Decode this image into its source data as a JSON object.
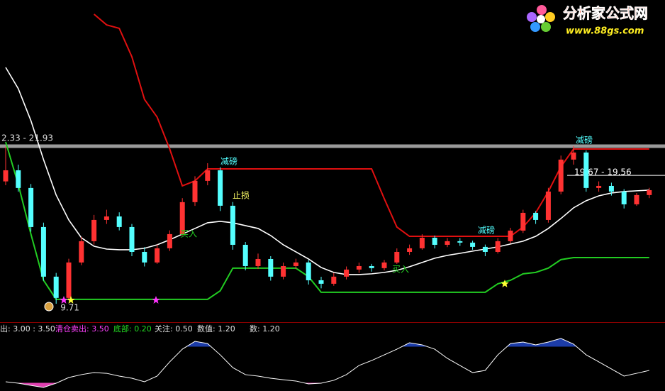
{
  "chart_data": {
    "type": "candlestick",
    "ylim": [
      8.5,
      33.27
    ],
    "up_color": "#ff3232",
    "down_color": "#54ffff",
    "candles": [
      [
        19.2,
        21.9,
        18.9,
        20.06
      ],
      [
        20.06,
        20.5,
        18.4,
        18.69
      ],
      [
        18.69,
        19.0,
        15.3,
        15.66
      ],
      [
        15.66,
        16.0,
        11.5,
        11.81
      ],
      [
        11.81,
        12.1,
        9.71,
        10.16
      ],
      [
        10.16,
        13.2,
        10.0,
        12.91
      ],
      [
        12.91,
        14.9,
        12.7,
        14.56
      ],
      [
        14.56,
        16.6,
        14.3,
        16.21
      ],
      [
        16.21,
        17.0,
        15.9,
        16.48
      ],
      [
        16.48,
        16.8,
        15.4,
        15.66
      ],
      [
        15.66,
        15.9,
        13.4,
        13.73
      ],
      [
        13.73,
        14.1,
        12.6,
        12.91
      ],
      [
        12.91,
        14.3,
        12.8,
        14.01
      ],
      [
        14.01,
        15.4,
        13.8,
        15.11
      ],
      [
        15.11,
        17.9,
        15.0,
        17.59
      ],
      [
        17.59,
        19.6,
        17.3,
        19.24
      ],
      [
        19.24,
        20.61,
        18.9,
        20.06
      ],
      [
        20.06,
        20.3,
        16.9,
        17.31
      ],
      [
        17.31,
        17.6,
        13.9,
        14.28
      ],
      [
        14.28,
        14.5,
        12.3,
        12.63
      ],
      [
        12.63,
        13.6,
        12.4,
        13.18
      ],
      [
        13.18,
        13.4,
        11.5,
        11.81
      ],
      [
        11.81,
        12.9,
        11.6,
        12.63
      ],
      [
        12.63,
        13.2,
        12.4,
        12.91
      ],
      [
        12.91,
        13.1,
        11.2,
        11.53
      ],
      [
        11.53,
        11.8,
        10.9,
        11.26
      ],
      [
        11.26,
        12.1,
        11.1,
        11.81
      ],
      [
        11.81,
        12.6,
        11.6,
        12.36
      ],
      [
        12.36,
        12.9,
        12.1,
        12.63
      ],
      [
        12.63,
        12.8,
        12.2,
        12.47
      ],
      [
        12.47,
        13.1,
        12.3,
        12.91
      ],
      [
        12.91,
        14.0,
        12.8,
        13.73
      ],
      [
        13.73,
        14.3,
        13.5,
        14.01
      ],
      [
        14.01,
        15.1,
        13.9,
        14.83
      ],
      [
        14.83,
        15.0,
        14.0,
        14.28
      ],
      [
        14.28,
        14.8,
        14.1,
        14.56
      ],
      [
        14.56,
        14.8,
        14.2,
        14.45
      ],
      [
        14.45,
        14.6,
        13.9,
        14.12
      ],
      [
        14.12,
        14.3,
        13.4,
        13.73
      ],
      [
        13.73,
        14.8,
        13.6,
        14.56
      ],
      [
        14.56,
        15.6,
        14.4,
        15.38
      ],
      [
        15.38,
        17.0,
        15.2,
        16.76
      ],
      [
        16.76,
        16.9,
        15.9,
        16.21
      ],
      [
        16.21,
        18.7,
        16.0,
        18.41
      ],
      [
        18.41,
        21.2,
        18.2,
        20.89
      ],
      [
        20.89,
        21.93,
        20.5,
        21.44
      ],
      [
        21.44,
        21.6,
        18.4,
        18.69
      ],
      [
        18.69,
        19.2,
        18.4,
        18.85
      ],
      [
        18.85,
        19.1,
        18.1,
        18.41
      ],
      [
        18.41,
        18.6,
        17.1,
        17.42
      ],
      [
        17.42,
        18.3,
        17.3,
        18.14
      ],
      [
        18.14,
        18.7,
        17.9,
        18.52
      ]
    ],
    "lines": [
      {
        "color": "#ffffff",
        "values": [
          28.04,
          26.39,
          23.91,
          20.89,
          18.14,
          16.21,
          14.83,
          14.17,
          13.95,
          13.9,
          13.9,
          14.01,
          14.28,
          14.67,
          15.11,
          15.55,
          15.99,
          16.1,
          15.99,
          15.77,
          15.55,
          15.0,
          14.28,
          13.73,
          13.18,
          12.52,
          12.14,
          11.97,
          11.97,
          12.03,
          12.14,
          12.3,
          12.58,
          12.91,
          13.24,
          13.46,
          13.62,
          13.79,
          13.95,
          14.12,
          14.34,
          14.56,
          14.94,
          15.55,
          16.32,
          17.15,
          17.7,
          18.08,
          18.3,
          18.41,
          18.47,
          18.52
        ]
      },
      {
        "color": "#e01010",
        "values": [
          null,
          null,
          null,
          null,
          null,
          null,
          null,
          32.17,
          31.34,
          31.07,
          28.87,
          25.56,
          24.19,
          21.71,
          18.85,
          19.24,
          20.17,
          20.17,
          20.17,
          20.17,
          20.17,
          20.17,
          20.17,
          20.17,
          20.17,
          20.17,
          20.17,
          20.17,
          20.17,
          20.17,
          17.86,
          15.66,
          14.94,
          14.94,
          14.94,
          14.94,
          14.94,
          14.94,
          14.94,
          14.94,
          14.94,
          15.66,
          16.76,
          18.41,
          20.34,
          21.71,
          21.71,
          21.71,
          21.71,
          21.71,
          21.71,
          21.71
        ]
      },
      {
        "color": "#22cc22",
        "values": [
          22.26,
          18.96,
          15.11,
          11.53,
          10.05,
          10.05,
          10.05,
          10.05,
          10.05,
          10.05,
          10.05,
          10.05,
          10.05,
          10.05,
          10.05,
          10.05,
          10.05,
          10.71,
          12.47,
          12.47,
          12.47,
          12.47,
          12.47,
          12.47,
          11.81,
          10.6,
          10.6,
          10.6,
          10.6,
          10.6,
          10.6,
          10.6,
          10.6,
          10.6,
          10.6,
          10.6,
          10.6,
          10.6,
          10.6,
          11.26,
          11.53,
          12.03,
          12.14,
          12.47,
          13.13,
          13.29,
          13.29,
          13.29,
          13.29,
          13.29,
          13.29,
          13.29
        ]
      }
    ],
    "price_lines": [
      {
        "value": 21.93,
        "label": "2.33 - 21.93",
        "color": "#9a9a9a"
      },
      {
        "value": 19.67,
        "label": "19.67 - 19.56",
        "color": "#ffffff"
      }
    ],
    "low_label": 9.71,
    "annotations": [
      {
        "text": "减磅",
        "color": "#54ffff"
      },
      {
        "text": "止损",
        "color": "#ffff66"
      },
      {
        "text": "买入",
        "color": "#22cc22"
      },
      {
        "text": "减磅",
        "color": "#54ffff"
      },
      {
        "text": "买入",
        "color": "#22cc22"
      },
      {
        "text": "减磅",
        "color": "#54ffff"
      }
    ],
    "indicator": {
      "ylim": [
        0,
        4.2
      ],
      "color": "#ffffff",
      "values": [
        0.59,
        0.47,
        0.29,
        0.12,
        0.47,
        0.94,
        1.18,
        1.35,
        1.29,
        1.06,
        0.88,
        0.59,
        1.06,
        2.24,
        3.29,
        3.94,
        3.76,
        2.82,
        1.76,
        1.18,
        1.06,
        0.88,
        0.76,
        0.65,
        0.41,
        0.47,
        0.71,
        1.18,
        1.94,
        2.35,
        2.82,
        3.29,
        3.82,
        3.65,
        3.29,
        2.53,
        1.94,
        1.35,
        1.53,
        2.82,
        3.76,
        3.88,
        3.65,
        3.88,
        4.18,
        3.71,
        2.82,
        2.24,
        1.65,
        1.06,
        1.29,
        1.53
      ],
      "high_level": {
        "value": 3.5,
        "color": "#1c3ca8"
      },
      "low_level": {
        "value": 0.5,
        "color": "#e040b0"
      },
      "legend": [
        {
          "text": "出: 3.00 : 3.50",
          "color": "#e0e0e0"
        },
        {
          "text": "清仓卖出: 3.50",
          "color": "#ff40ff"
        },
        {
          "text": "底部: 0.20",
          "color": "#22dd22"
        },
        {
          "text": "关注: 0.50",
          "color": "#e0e0e0"
        },
        {
          "text": "数值: 1.20",
          "color": "#e0e0e0"
        },
        {
          "text": "数: 1.20",
          "color": "#e0e0e0"
        }
      ]
    }
  },
  "watermark": {
    "name": "分析家公式网",
    "url": "www.88gs.com"
  }
}
